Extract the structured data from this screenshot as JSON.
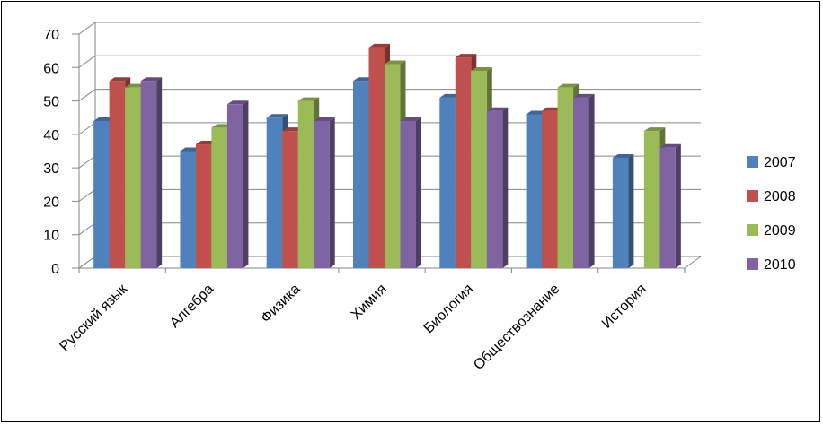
{
  "chart_data": {
    "type": "bar",
    "title": "",
    "xlabel": "",
    "ylabel": "",
    "ylim": [
      0,
      70
    ],
    "yticks": [
      0,
      10,
      20,
      30,
      40,
      50,
      60,
      70
    ],
    "grid": true,
    "legend_position": "right",
    "categories": [
      "Русский язык",
      "Алгебра",
      "Физика",
      "Химия",
      "Биология",
      "Обществознание",
      "История"
    ],
    "series": [
      {
        "name": "2007",
        "color": "#4F81BD",
        "values": [
          44,
          35,
          45,
          56,
          51,
          46,
          33
        ]
      },
      {
        "name": "2008",
        "color": "#C0504D",
        "values": [
          56,
          37,
          41,
          66,
          63,
          47,
          null
        ]
      },
      {
        "name": "2009",
        "color": "#9BBB59",
        "values": [
          54,
          42,
          50,
          61,
          59,
          54,
          41
        ]
      },
      {
        "name": "2010",
        "color": "#8064A2",
        "values": [
          56,
          49,
          44,
          44,
          47,
          51,
          36
        ]
      }
    ]
  }
}
